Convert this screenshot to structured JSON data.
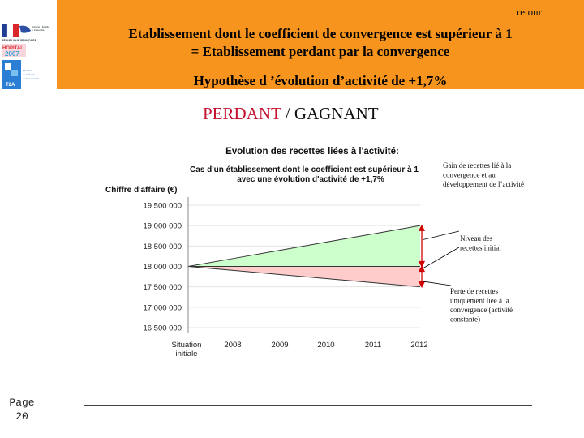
{
  "header": {
    "retour_label": "retour",
    "title_line1": "Etablissement dont le coefficient de convergence est supérieur à 1",
    "title_line2": "= Etablissement perdant par la convergence",
    "hypothesis": "Hypothèse d ’évolution d’activité de +1,7%"
  },
  "logo": {
    "motto": "Liberté • Égalité • Fraternité",
    "republique": "RÉPUBLIQUE FRANÇAISE",
    "hopital": "HOPITAL 2007",
    "t2a": "T2A",
    "ministere": "Ministère de la Santé et de la Famille"
  },
  "section_title": {
    "perdant": "PERDANT",
    "separator": " / ",
    "gagnant": "GAGNANT"
  },
  "page": {
    "label": "Page",
    "number": "20"
  },
  "colors": {
    "header_bg": "#f7941d",
    "gain_fill": "#ccffcc",
    "loss_fill": "#ffcccc",
    "arrow": "#d00000",
    "perdant_text": "#c4122f"
  },
  "chart_data": {
    "type": "area",
    "title": "Evolution des recettes liées à l'activité:",
    "subtitle_lines": [
      "Cas d'un établissement dont le coefficient est supérieur à 1",
      "avec une évolution d'activité de +1,7%"
    ],
    "ylabel": "Chiffre d'affaire (€)",
    "categories": [
      "Situation initiale",
      "2008",
      "2009",
      "2010",
      "2011",
      "2012"
    ],
    "category_lines": [
      [
        "Situation",
        "initiale"
      ],
      [
        "2008"
      ],
      [
        "2009"
      ],
      [
        "2010"
      ],
      [
        "2011"
      ],
      [
        "2012"
      ]
    ],
    "yticks": [
      16500000,
      17000000,
      17500000,
      18000000,
      18500000,
      19000000,
      19500000
    ],
    "ytick_labels": [
      "16 500 000",
      "17 000 000",
      "17 500 000",
      "18 000 000",
      "18 500 000",
      "19 000 000",
      "19 500 000"
    ],
    "ylim": [
      16500000,
      19500000
    ],
    "series": [
      {
        "values": [
          18000000,
          18200000,
          18400000,
          18600000,
          18800000,
          19000000
        ]
      },
      {
        "values": [
          18000000,
          18000000,
          18000000,
          18000000,
          18000000,
          18000000
        ]
      },
      {
        "values": [
          18000000,
          17900000,
          17800000,
          17700000,
          17600000,
          17500000
        ]
      }
    ],
    "annotations": {
      "gain": [
        "Gain de recettes lié à la",
        "convergence et au",
        "développement de l’activité"
      ],
      "initial": [
        "Niveau des",
        "recettes initial"
      ],
      "perte": [
        "Perte de recettes",
        "uniquement liée à la",
        "convergence (activité",
        "constante)"
      ]
    }
  }
}
